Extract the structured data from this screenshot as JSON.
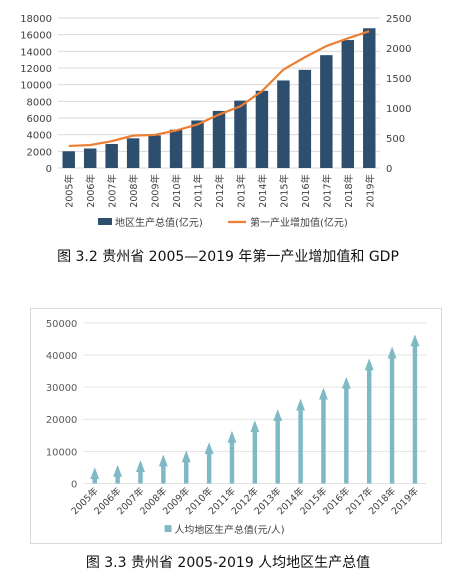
{
  "figure1": {
    "caption": "图 3.2 贵州省 2005—2019 年第一产业增加值和 GDP",
    "chart_data": {
      "type": "bar",
      "categories": [
        "2005年",
        "2006年",
        "2007年",
        "2008年",
        "2009年",
        "2010年",
        "2011年",
        "2012年",
        "2013年",
        "2014年",
        "2015年",
        "2016年",
        "2017年",
        "2018年",
        "2019年"
      ],
      "series": [
        {
          "name": "地区生产总值(亿元)",
          "type": "bar",
          "axis": "left",
          "color": "#2e4e6e",
          "values": [
            2005,
            2339,
            2884,
            3562,
            3913,
            4602,
            5702,
            6852,
            8087,
            9266,
            10503,
            11777,
            13541,
            15353,
            16769
          ]
        },
        {
          "name": "第一产业增加值(亿元)",
          "type": "line",
          "axis": "right",
          "color": "#ed7d31",
          "values": [
            368,
            382,
            447,
            540,
            551,
            625,
            726,
            891,
            1029,
            1281,
            1640,
            1846,
            2032,
            2160,
            2280
          ]
        }
      ],
      "ylim_left": [
        0,
        18000
      ],
      "yticks_left": [
        0,
        2000,
        4000,
        6000,
        8000,
        10000,
        12000,
        14000,
        16000,
        18000
      ],
      "ylim_right": [
        0,
        2500
      ],
      "yticks_right": [
        0,
        500,
        1000,
        1500,
        2000,
        2500
      ],
      "grid": true,
      "legend": "bottom"
    }
  },
  "figure2": {
    "caption": "图 3.3 贵州省 2005-2019 人均地区生产总值",
    "chart_data": {
      "type": "bar",
      "categories": [
        "2005年",
        "2006年",
        "2007年",
        "2008年",
        "2009年",
        "2010年",
        "2011年",
        "2012年",
        "2013年",
        "2014年",
        "2015年",
        "2016年",
        "2017年",
        "2018年",
        "2019年"
      ],
      "series": [
        {
          "name": "人均地区生产总值(元/人)",
          "color": "#7fb9c6",
          "values": [
            5052,
            5787,
            7273,
            9045,
            10309,
            12882,
            16413,
            19710,
            23151,
            26437,
            29847,
            33246,
            38956,
            42650,
            46433
          ]
        }
      ],
      "ylim": [
        0,
        50000
      ],
      "yticks": [
        0,
        10000,
        20000,
        30000,
        40000,
        50000
      ],
      "grid": true,
      "legend": "bottom"
    }
  }
}
